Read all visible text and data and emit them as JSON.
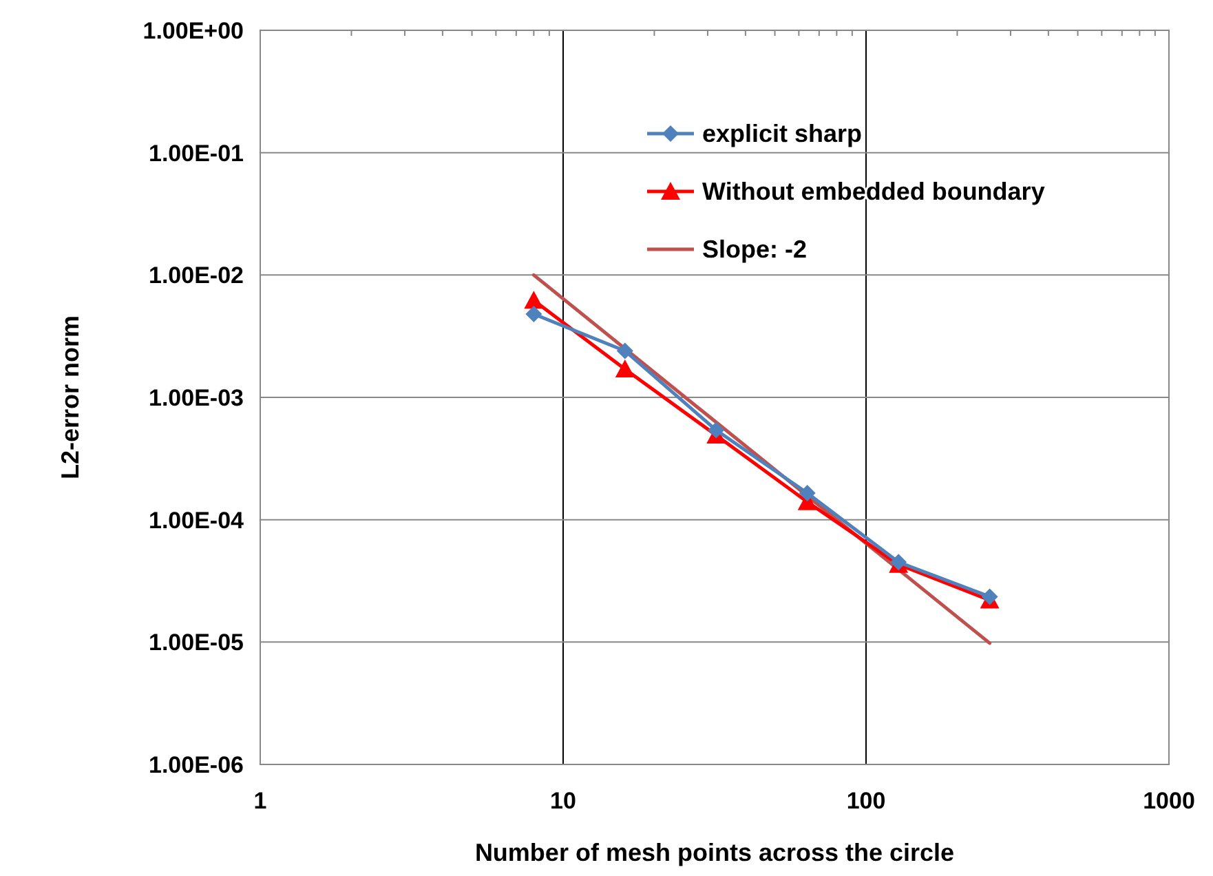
{
  "chart_data": {
    "type": "line",
    "xlabel": "Number of mesh points across the circle",
    "ylabel": "L2-error norm",
    "log": "xy",
    "grid": true,
    "legend": "top right",
    "xlim": [
      1,
      1000
    ],
    "xticks": [
      1,
      10,
      100,
      1000
    ],
    "ylim": [
      1e-06,
      1
    ],
    "yticks": [
      {
        "value": 1,
        "label": "1.00E+00"
      },
      {
        "value": 0.1,
        "label": "1.00E-01"
      },
      {
        "value": 0.01,
        "label": "1.00E-02"
      },
      {
        "value": 0.001,
        "label": "1.00E-03"
      },
      {
        "value": 0.0001,
        "label": "1.00E-04"
      },
      {
        "value": 1e-05,
        "label": "1.00E-05"
      },
      {
        "value": 1e-06,
        "label": "1.00E-06"
      }
    ],
    "x": [
      8,
      16,
      32,
      64,
      128,
      256
    ],
    "series": [
      {
        "name": "explicit sharp",
        "color": "#4f81bd",
        "marker": "diamond",
        "values": [
          0.0048,
          0.0024,
          0.00054,
          0.000165,
          4.5e-05,
          2.35e-05
        ]
      },
      {
        "name": "Without embedded boundary",
        "color": "#ff0000",
        "marker": "triangle",
        "values": [
          0.0062,
          0.0017,
          0.00049,
          0.00014,
          4.3e-05,
          2.2e-05
        ]
      },
      {
        "name": "Slope: -2",
        "color": "#c0504d",
        "marker": "none",
        "x": [
          8,
          256
        ],
        "values": [
          0.01,
          9.8e-06
        ]
      }
    ]
  }
}
